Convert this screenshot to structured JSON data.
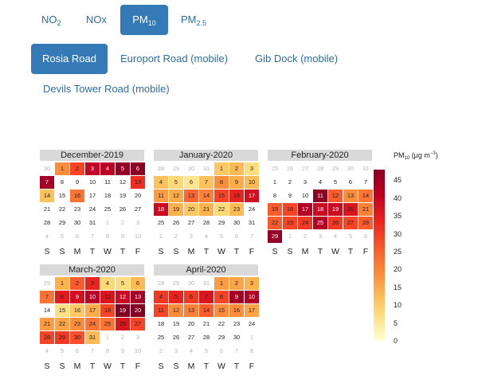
{
  "pollutant_tabs": [
    {
      "main": "NO",
      "sub": "2",
      "active": false
    },
    {
      "main": "NOx",
      "sub": "",
      "active": false
    },
    {
      "main": "PM",
      "sub": "10",
      "active": true
    },
    {
      "main": "PM",
      "sub": "2.5",
      "active": false
    }
  ],
  "site_tabs": [
    {
      "label": "Rosia Road",
      "active": true
    },
    {
      "label": "Europort Road (mobile)",
      "active": false
    },
    {
      "label": "Gib Dock (mobile)",
      "active": false
    },
    {
      "label": "Devils Tower Road (mobile)",
      "active": false
    }
  ],
  "weekdays": [
    "S",
    "S",
    "M",
    "T",
    "W",
    "T",
    "F"
  ],
  "legend": {
    "title": "PM",
    "title_sub": "10",
    "title_rest": " (μg m",
    "title_sup": "−3",
    "title_end": ")",
    "ticks": [
      "45",
      "40",
      "35",
      "30",
      "25",
      "20",
      "15",
      "10",
      "5",
      "0"
    ],
    "min": 0,
    "max": 48
  },
  "calendars": [
    {
      "title": "December-2019",
      "days": [
        "30",
        "1",
        "2",
        "3",
        "4",
        "5",
        "6",
        "7",
        "8",
        "9",
        "10",
        "11",
        "12",
        "13",
        "14",
        "15",
        "16",
        "17",
        "18",
        "19",
        "20",
        "21",
        "22",
        "23",
        "24",
        "25",
        "26",
        "27",
        "28",
        "29",
        "30",
        "31",
        "1",
        "2",
        "3",
        "4",
        "5",
        "6",
        "7",
        "8",
        "9",
        "10"
      ],
      "in_month": [
        false,
        true,
        true,
        true,
        true,
        true,
        true,
        true,
        true,
        true,
        true,
        true,
        true,
        true,
        true,
        true,
        true,
        true,
        true,
        true,
        true,
        true,
        true,
        true,
        true,
        true,
        true,
        true,
        true,
        true,
        true,
        true,
        false,
        false,
        false,
        false,
        false,
        false,
        false,
        false,
        false,
        false
      ],
      "values": [
        null,
        20,
        26,
        34,
        35,
        40,
        42,
        38,
        null,
        null,
        null,
        null,
        null,
        28,
        13,
        null,
        22,
        null,
        null,
        null,
        null,
        null,
        null,
        null,
        null,
        null,
        null,
        null,
        null,
        null,
        null,
        null,
        null,
        null,
        null,
        null,
        null,
        null,
        null,
        null,
        null,
        null
      ]
    },
    {
      "title": "January-2020",
      "days": [
        "28",
        "29",
        "30",
        "31",
        "1",
        "2",
        "3",
        "4",
        "5",
        "6",
        "7",
        "8",
        "9",
        "10",
        "11",
        "12",
        "13",
        "14",
        "15",
        "16",
        "17",
        "18",
        "19",
        "20",
        "21",
        "22",
        "23",
        "24",
        "25",
        "26",
        "27",
        "28",
        "29",
        "30",
        "31",
        "1",
        "2",
        "3",
        "4",
        "5",
        "6",
        "7"
      ],
      "in_month": [
        false,
        false,
        false,
        false,
        true,
        true,
        true,
        true,
        true,
        true,
        true,
        true,
        true,
        true,
        true,
        true,
        true,
        true,
        true,
        true,
        true,
        true,
        true,
        true,
        true,
        true,
        true,
        true,
        true,
        true,
        true,
        true,
        true,
        true,
        true,
        false,
        false,
        false,
        false,
        false,
        false,
        false
      ],
      "values": [
        null,
        null,
        null,
        null,
        12,
        14,
        9,
        13,
        10,
        7,
        13,
        20,
        16,
        14,
        18,
        16,
        23,
        21,
        26,
        29,
        32,
        33,
        15,
        12,
        15,
        10,
        14,
        null,
        null,
        null,
        null,
        null,
        null,
        null,
        null,
        null,
        null,
        null,
        null,
        null,
        null,
        null
      ]
    },
    {
      "title": "February-2020",
      "days": [
        "25",
        "26",
        "27",
        "28",
        "29",
        "30",
        "31",
        "1",
        "2",
        "3",
        "4",
        "5",
        "6",
        "7",
        "8",
        "9",
        "10",
        "11",
        "12",
        "13",
        "14",
        "15",
        "16",
        "17",
        "18",
        "19",
        "20",
        "21",
        "22",
        "23",
        "24",
        "25",
        "26",
        "27",
        "28",
        "29",
        "1",
        "2",
        "3",
        "4",
        "5",
        "6"
      ],
      "in_month": [
        false,
        false,
        false,
        false,
        false,
        false,
        false,
        true,
        true,
        true,
        true,
        true,
        true,
        true,
        true,
        true,
        true,
        true,
        true,
        true,
        true,
        true,
        true,
        true,
        true,
        true,
        true,
        true,
        true,
        true,
        true,
        true,
        true,
        true,
        true,
        true,
        false,
        false,
        false,
        false,
        false,
        false
      ],
      "values": [
        null,
        null,
        null,
        null,
        null,
        null,
        null,
        null,
        null,
        null,
        null,
        null,
        null,
        null,
        null,
        null,
        null,
        42,
        24,
        20,
        22,
        24,
        26,
        36,
        33,
        33,
        31,
        21,
        24,
        26,
        27,
        36,
        27,
        26,
        24,
        40,
        null,
        null,
        null,
        null,
        null,
        null
      ]
    },
    {
      "title": "March-2020",
      "days": [
        "29",
        "1",
        "2",
        "3",
        "4",
        "5",
        "6",
        "7",
        "8",
        "9",
        "10",
        "11",
        "12",
        "13",
        "14",
        "15",
        "16",
        "17",
        "18",
        "19",
        "20",
        "21",
        "22",
        "23",
        "24",
        "25",
        "26",
        "27",
        "28",
        "29",
        "30",
        "31",
        "1",
        "2",
        "3",
        "4",
        "5",
        "6",
        "7",
        "8",
        "9",
        "10"
      ],
      "in_month": [
        false,
        true,
        true,
        true,
        true,
        true,
        true,
        true,
        true,
        true,
        true,
        true,
        true,
        true,
        true,
        true,
        true,
        true,
        true,
        true,
        true,
        true,
        true,
        true,
        true,
        true,
        true,
        true,
        true,
        true,
        true,
        true,
        false,
        false,
        false,
        false,
        false,
        false,
        false,
        false,
        false,
        false
      ],
      "values": [
        null,
        15,
        24,
        29,
        10,
        9,
        14,
        22,
        30,
        32,
        35,
        31,
        33,
        38,
        null,
        8,
        12,
        16,
        26,
        44,
        44,
        18,
        17,
        20,
        22,
        22,
        31,
        26,
        26,
        27,
        25,
        14,
        null,
        null,
        null,
        null,
        null,
        null,
        null,
        null,
        null,
        null
      ]
    },
    {
      "title": "April-2020",
      "days": [
        "28",
        "29",
        "30",
        "31",
        "1",
        "2",
        "3",
        "4",
        "5",
        "6",
        "7",
        "8",
        "9",
        "10",
        "11",
        "12",
        "13",
        "14",
        "15",
        "16",
        "17",
        "18",
        "19",
        "20",
        "21",
        "22",
        "23",
        "24",
        "25",
        "26",
        "27",
        "28",
        "29",
        "30",
        "1",
        "2",
        "3",
        "4",
        "5",
        "6",
        "7",
        "8"
      ],
      "in_month": [
        false,
        false,
        false,
        false,
        true,
        true,
        true,
        true,
        true,
        true,
        true,
        true,
        true,
        true,
        true,
        true,
        true,
        true,
        true,
        true,
        true,
        true,
        true,
        true,
        true,
        true,
        true,
        true,
        true,
        true,
        true,
        true,
        true,
        true,
        false,
        false,
        false,
        false,
        false,
        false,
        false,
        false
      ],
      "values": [
        null,
        null,
        null,
        null,
        18,
        17,
        15,
        27,
        29,
        27,
        31,
        26,
        38,
        36,
        26,
        20,
        21,
        24,
        20,
        20,
        17,
        null,
        null,
        null,
        null,
        null,
        null,
        null,
        null,
        null,
        null,
        null,
        null,
        null,
        null,
        null,
        null,
        null,
        null,
        null,
        null,
        null
      ]
    }
  ]
}
